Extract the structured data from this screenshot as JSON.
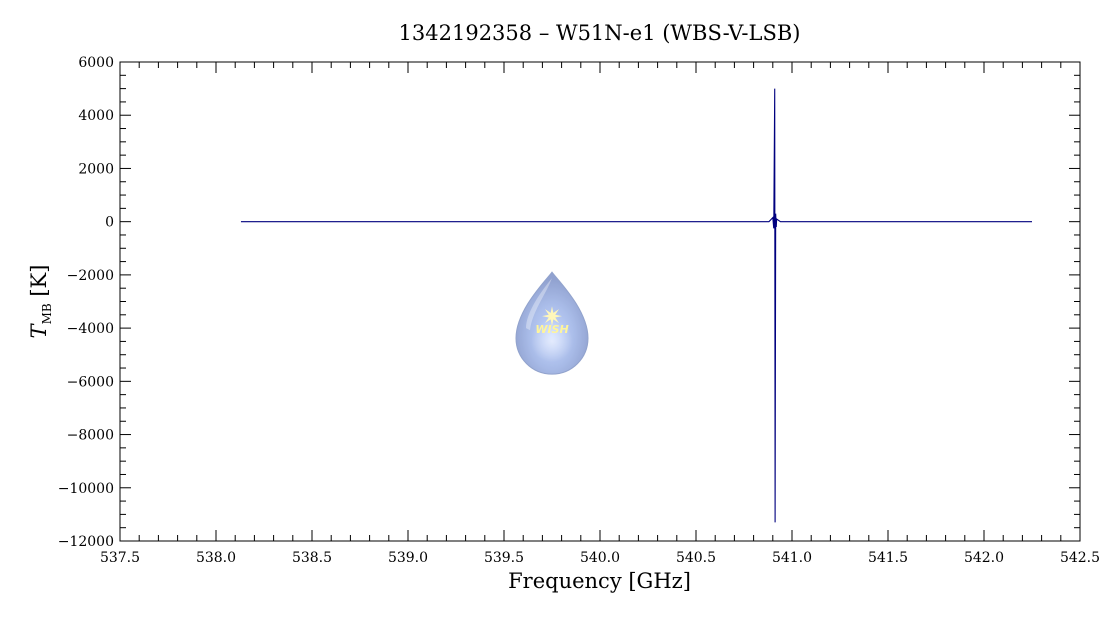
{
  "chart_data": {
    "type": "line",
    "title": "1342192358 – W51N-e1 (WBS-V-LSB)",
    "xlabel": "Frequency [GHz]",
    "ylabel": {
      "symbol": "T",
      "subscript": "MB",
      "unit": " [K]"
    },
    "xlim": [
      537.5,
      542.5
    ],
    "ylim": [
      -12000,
      6000
    ],
    "xticks": [
      537.5,
      538.0,
      538.5,
      539.0,
      539.5,
      540.0,
      540.5,
      541.0,
      541.5,
      542.0,
      542.5
    ],
    "xtick_labels": [
      "537.5",
      "538.0",
      "538.5",
      "539.0",
      "539.5",
      "540.0",
      "540.5",
      "541.0",
      "541.5",
      "542.0",
      "542.5"
    ],
    "yticks": [
      -12000,
      -10000,
      -8000,
      -6000,
      -4000,
      -2000,
      0,
      2000,
      4000,
      6000
    ],
    "ytick_labels": [
      "−12000",
      "−10000",
      "−8000",
      "−6000",
      "−4000",
      "−2000",
      "0",
      "2000",
      "4000",
      "6000"
    ],
    "series": [
      {
        "color": "#00007f",
        "x": [
          538.13,
          540.88,
          540.9,
          540.905,
          540.91,
          540.912,
          540.915,
          540.918,
          540.92,
          540.94,
          542.25
        ],
        "y": [
          0,
          0,
          150,
          -250,
          5000,
          -11300,
          300,
          -200,
          100,
          0,
          0
        ]
      }
    ],
    "grid": false,
    "logo": {
      "text": "WISH",
      "position": [
        539.75,
        -3850
      ],
      "colors": {
        "drop": "#8fa6d8",
        "star": "#ffe98a",
        "text": "#fff48a"
      }
    }
  }
}
